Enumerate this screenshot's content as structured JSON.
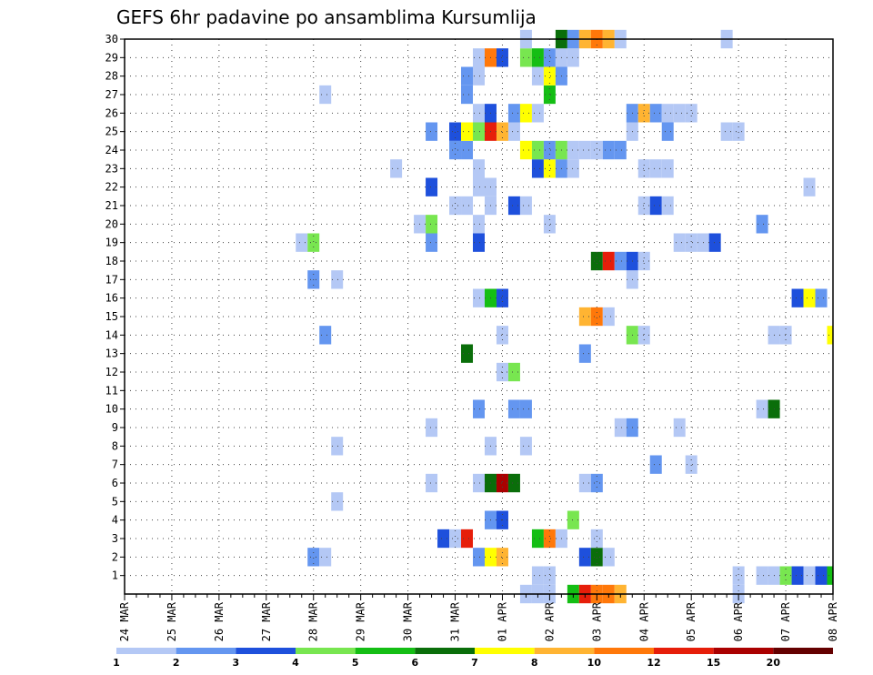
{
  "chart_data": {
    "type": "heatmap",
    "title": "GEFS 6hr padavine po ansamblima Kursumlija",
    "xlabel": "",
    "ylabel": "",
    "x_tick_labels": [
      "24 MAR",
      "25 MAR",
      "26 MAR",
      "27 MAR",
      "28 MAR",
      "29 MAR",
      "30 MAR",
      "31 MAR",
      "01 APR",
      "02 APR",
      "03 APR",
      "04 APR",
      "05 APR",
      "06 APR",
      "07 APR",
      "08 APR"
    ],
    "y_tick_labels": [
      "1",
      "2",
      "3",
      "4",
      "5",
      "6",
      "7",
      "8",
      "9",
      "10",
      "11",
      "12",
      "13",
      "14",
      "15",
      "16",
      "17",
      "18",
      "19",
      "20",
      "21",
      "22",
      "23",
      "24",
      "25",
      "26",
      "27",
      "28",
      "29",
      "30"
    ],
    "xlim_steps": [
      0,
      60
    ],
    "ylim_rows": [
      0,
      30
    ],
    "grid": "dotted",
    "colorbar": {
      "labels": [
        "1",
        "2",
        "3",
        "4",
        "5",
        "6",
        "7",
        "8",
        "10",
        "12",
        "15",
        "20"
      ],
      "colors": [
        "#b4c8f5",
        "#6496f0",
        "#1e50dc",
        "#78e650",
        "#14be14",
        "#0a6e0a",
        "#ffff00",
        "#ffb432",
        "#ff780a",
        "#e61e0a",
        "#aa0000",
        "#640000"
      ]
    },
    "cells": [
      {
        "m": 0,
        "t": 34,
        "c": 0
      },
      {
        "m": 0,
        "t": 35,
        "c": 0
      },
      {
        "m": 0,
        "t": 36,
        "c": 0
      },
      {
        "m": 0,
        "t": 38,
        "c": 4
      },
      {
        "m": 0,
        "t": 39,
        "c": 9
      },
      {
        "m": 0,
        "t": 40,
        "c": 8
      },
      {
        "m": 0,
        "t": 41,
        "c": 8
      },
      {
        "m": 0,
        "t": 42,
        "c": 7
      },
      {
        "m": 0,
        "t": 52,
        "c": 0
      },
      {
        "m": 1,
        "t": 35,
        "c": 0
      },
      {
        "m": 1,
        "t": 36,
        "c": 0
      },
      {
        "m": 1,
        "t": 52,
        "c": 0
      },
      {
        "m": 1,
        "t": 54,
        "c": 0
      },
      {
        "m": 1,
        "t": 55,
        "c": 0
      },
      {
        "m": 1,
        "t": 56,
        "c": 3
      },
      {
        "m": 1,
        "t": 57,
        "c": 2
      },
      {
        "m": 1,
        "t": 58,
        "c": 0
      },
      {
        "m": 1,
        "t": 59,
        "c": 2
      },
      {
        "m": 1,
        "t": 60,
        "c": 4
      },
      {
        "m": 2,
        "t": 16,
        "c": 1
      },
      {
        "m": 2,
        "t": 17,
        "c": 0
      },
      {
        "m": 2,
        "t": 30,
        "c": 1
      },
      {
        "m": 2,
        "t": 31,
        "c": 6
      },
      {
        "m": 2,
        "t": 32,
        "c": 7
      },
      {
        "m": 2,
        "t": 39,
        "c": 2
      },
      {
        "m": 2,
        "t": 40,
        "c": 5
      },
      {
        "m": 2,
        "t": 41,
        "c": 0
      },
      {
        "m": 3,
        "t": 27,
        "c": 2
      },
      {
        "m": 3,
        "t": 28,
        "c": 0
      },
      {
        "m": 3,
        "t": 29,
        "c": 9
      },
      {
        "m": 3,
        "t": 35,
        "c": 4
      },
      {
        "m": 3,
        "t": 36,
        "c": 8
      },
      {
        "m": 3,
        "t": 37,
        "c": 0
      },
      {
        "m": 3,
        "t": 40,
        "c": 0
      },
      {
        "m": 4,
        "t": 31,
        "c": 1
      },
      {
        "m": 4,
        "t": 32,
        "c": 2
      },
      {
        "m": 4,
        "t": 38,
        "c": 3
      },
      {
        "m": 5,
        "t": 18,
        "c": 0
      },
      {
        "m": 6,
        "t": 26,
        "c": 0
      },
      {
        "m": 6,
        "t": 30,
        "c": 0
      },
      {
        "m": 6,
        "t": 31,
        "c": 5
      },
      {
        "m": 6,
        "t": 32,
        "c": 10
      },
      {
        "m": 6,
        "t": 33,
        "c": 5
      },
      {
        "m": 6,
        "t": 39,
        "c": 0
      },
      {
        "m": 6,
        "t": 40,
        "c": 1
      },
      {
        "m": 7,
        "t": 45,
        "c": 1
      },
      {
        "m": 7,
        "t": 48,
        "c": 0
      },
      {
        "m": 8,
        "t": 18,
        "c": 0
      },
      {
        "m": 8,
        "t": 31,
        "c": 0
      },
      {
        "m": 8,
        "t": 34,
        "c": 0
      },
      {
        "m": 9,
        "t": 26,
        "c": 0
      },
      {
        "m": 9,
        "t": 42,
        "c": 0
      },
      {
        "m": 9,
        "t": 43,
        "c": 1
      },
      {
        "m": 9,
        "t": 47,
        "c": 0
      },
      {
        "m": 10,
        "t": 30,
        "c": 1
      },
      {
        "m": 10,
        "t": 33,
        "c": 1
      },
      {
        "m": 10,
        "t": 34,
        "c": 1
      },
      {
        "m": 10,
        "t": 54,
        "c": 0
      },
      {
        "m": 10,
        "t": 55,
        "c": 5
      },
      {
        "m": 12,
        "t": 32,
        "c": 0
      },
      {
        "m": 12,
        "t": 33,
        "c": 3
      },
      {
        "m": 13,
        "t": 29,
        "c": 5
      },
      {
        "m": 13,
        "t": 39,
        "c": 1
      },
      {
        "m": 14,
        "t": 17,
        "c": 1
      },
      {
        "m": 14,
        "t": 32,
        "c": 0
      },
      {
        "m": 14,
        "t": 43,
        "c": 3
      },
      {
        "m": 14,
        "t": 44,
        "c": 0
      },
      {
        "m": 14,
        "t": 55,
        "c": 0
      },
      {
        "m": 14,
        "t": 56,
        "c": 0
      },
      {
        "m": 14,
        "t": 60,
        "c": 6
      },
      {
        "m": 15,
        "t": 39,
        "c": 7
      },
      {
        "m": 15,
        "t": 40,
        "c": 8
      },
      {
        "m": 15,
        "t": 41,
        "c": 0
      },
      {
        "m": 16,
        "t": 30,
        "c": 0
      },
      {
        "m": 16,
        "t": 31,
        "c": 4
      },
      {
        "m": 16,
        "t": 32,
        "c": 2
      },
      {
        "m": 16,
        "t": 57,
        "c": 2
      },
      {
        "m": 16,
        "t": 58,
        "c": 6
      },
      {
        "m": 16,
        "t": 59,
        "c": 1
      },
      {
        "m": 17,
        "t": 16,
        "c": 1
      },
      {
        "m": 17,
        "t": 18,
        "c": 0
      },
      {
        "m": 17,
        "t": 43,
        "c": 0
      },
      {
        "m": 18,
        "t": 40,
        "c": 5
      },
      {
        "m": 18,
        "t": 41,
        "c": 9
      },
      {
        "m": 18,
        "t": 42,
        "c": 1
      },
      {
        "m": 18,
        "t": 43,
        "c": 2
      },
      {
        "m": 18,
        "t": 44,
        "c": 0
      },
      {
        "m": 19,
        "t": 15,
        "c": 0
      },
      {
        "m": 19,
        "t": 16,
        "c": 3
      },
      {
        "m": 19,
        "t": 26,
        "c": 1
      },
      {
        "m": 19,
        "t": 30,
        "c": 2
      },
      {
        "m": 19,
        "t": 47,
        "c": 0
      },
      {
        "m": 19,
        "t": 48,
        "c": 0
      },
      {
        "m": 19,
        "t": 49,
        "c": 0
      },
      {
        "m": 19,
        "t": 50,
        "c": 2
      },
      {
        "m": 20,
        "t": 25,
        "c": 0
      },
      {
        "m": 20,
        "t": 26,
        "c": 3
      },
      {
        "m": 20,
        "t": 30,
        "c": 0
      },
      {
        "m": 20,
        "t": 36,
        "c": 0
      },
      {
        "m": 20,
        "t": 54,
        "c": 1
      },
      {
        "m": 21,
        "t": 28,
        "c": 0
      },
      {
        "m": 21,
        "t": 29,
        "c": 0
      },
      {
        "m": 21,
        "t": 31,
        "c": 0
      },
      {
        "m": 21,
        "t": 33,
        "c": 2
      },
      {
        "m": 21,
        "t": 34,
        "c": 0
      },
      {
        "m": 21,
        "t": 44,
        "c": 0
      },
      {
        "m": 21,
        "t": 45,
        "c": 2
      },
      {
        "m": 21,
        "t": 46,
        "c": 0
      },
      {
        "m": 22,
        "t": 26,
        "c": 2
      },
      {
        "m": 22,
        "t": 30,
        "c": 0
      },
      {
        "m": 22,
        "t": 31,
        "c": 0
      },
      {
        "m": 22,
        "t": 58,
        "c": 0
      },
      {
        "m": 23,
        "t": 23,
        "c": 0
      },
      {
        "m": 23,
        "t": 30,
        "c": 0
      },
      {
        "m": 23,
        "t": 35,
        "c": 2
      },
      {
        "m": 23,
        "t": 36,
        "c": 6
      },
      {
        "m": 23,
        "t": 37,
        "c": 1
      },
      {
        "m": 23,
        "t": 38,
        "c": 0
      },
      {
        "m": 23,
        "t": 44,
        "c": 0
      },
      {
        "m": 23,
        "t": 45,
        "c": 0
      },
      {
        "m": 23,
        "t": 46,
        "c": 0
      },
      {
        "m": 24,
        "t": 28,
        "c": 1
      },
      {
        "m": 24,
        "t": 29,
        "c": 1
      },
      {
        "m": 24,
        "t": 34,
        "c": 6
      },
      {
        "m": 24,
        "t": 35,
        "c": 3
      },
      {
        "m": 24,
        "t": 36,
        "c": 1
      },
      {
        "m": 24,
        "t": 37,
        "c": 3
      },
      {
        "m": 24,
        "t": 38,
        "c": 0
      },
      {
        "m": 24,
        "t": 39,
        "c": 0
      },
      {
        "m": 24,
        "t": 40,
        "c": 0
      },
      {
        "m": 24,
        "t": 41,
        "c": 1
      },
      {
        "m": 24,
        "t": 42,
        "c": 1
      },
      {
        "m": 25,
        "t": 26,
        "c": 1
      },
      {
        "m": 25,
        "t": 28,
        "c": 2
      },
      {
        "m": 25,
        "t": 29,
        "c": 6
      },
      {
        "m": 25,
        "t": 30,
        "c": 3
      },
      {
        "m": 25,
        "t": 31,
        "c": 9
      },
      {
        "m": 25,
        "t": 32,
        "c": 7
      },
      {
        "m": 25,
        "t": 33,
        "c": 0
      },
      {
        "m": 25,
        "t": 43,
        "c": 0
      },
      {
        "m": 25,
        "t": 46,
        "c": 1
      },
      {
        "m": 25,
        "t": 51,
        "c": 0
      },
      {
        "m": 25,
        "t": 52,
        "c": 0
      },
      {
        "m": 26,
        "t": 30,
        "c": 0
      },
      {
        "m": 26,
        "t": 31,
        "c": 2
      },
      {
        "m": 26,
        "t": 33,
        "c": 1
      },
      {
        "m": 26,
        "t": 34,
        "c": 6
      },
      {
        "m": 26,
        "t": 35,
        "c": 0
      },
      {
        "m": 26,
        "t": 43,
        "c": 1
      },
      {
        "m": 26,
        "t": 44,
        "c": 7
      },
      {
        "m": 26,
        "t": 45,
        "c": 1
      },
      {
        "m": 26,
        "t": 46,
        "c": 0
      },
      {
        "m": 26,
        "t": 47,
        "c": 0
      },
      {
        "m": 26,
        "t": 48,
        "c": 0
      },
      {
        "m": 27,
        "t": 17,
        "c": 0
      },
      {
        "m": 27,
        "t": 29,
        "c": 1
      },
      {
        "m": 27,
        "t": 36,
        "c": 4
      },
      {
        "m": 28,
        "t": 29,
        "c": 1
      },
      {
        "m": 28,
        "t": 30,
        "c": 0
      },
      {
        "m": 28,
        "t": 35,
        "c": 0
      },
      {
        "m": 28,
        "t": 36,
        "c": 6
      },
      {
        "m": 28,
        "t": 37,
        "c": 1
      },
      {
        "m": 29,
        "t": 30,
        "c": 0
      },
      {
        "m": 29,
        "t": 31,
        "c": 8
      },
      {
        "m": 29,
        "t": 32,
        "c": 2
      },
      {
        "m": 29,
        "t": 34,
        "c": 3
      },
      {
        "m": 29,
        "t": 35,
        "c": 4
      },
      {
        "m": 29,
        "t": 36,
        "c": 1
      },
      {
        "m": 29,
        "t": 37,
        "c": 0
      },
      {
        "m": 29,
        "t": 38,
        "c": 0
      },
      {
        "m": 30,
        "t": 34,
        "c": 0
      },
      {
        "m": 30,
        "t": 37,
        "c": 5
      },
      {
        "m": 30,
        "t": 38,
        "c": 1
      },
      {
        "m": 30,
        "t": 39,
        "c": 7
      },
      {
        "m": 30,
        "t": 40,
        "c": 8
      },
      {
        "m": 30,
        "t": 41,
        "c": 7
      },
      {
        "m": 30,
        "t": 42,
        "c": 0
      },
      {
        "m": 30,
        "t": 51,
        "c": 0
      }
    ]
  }
}
